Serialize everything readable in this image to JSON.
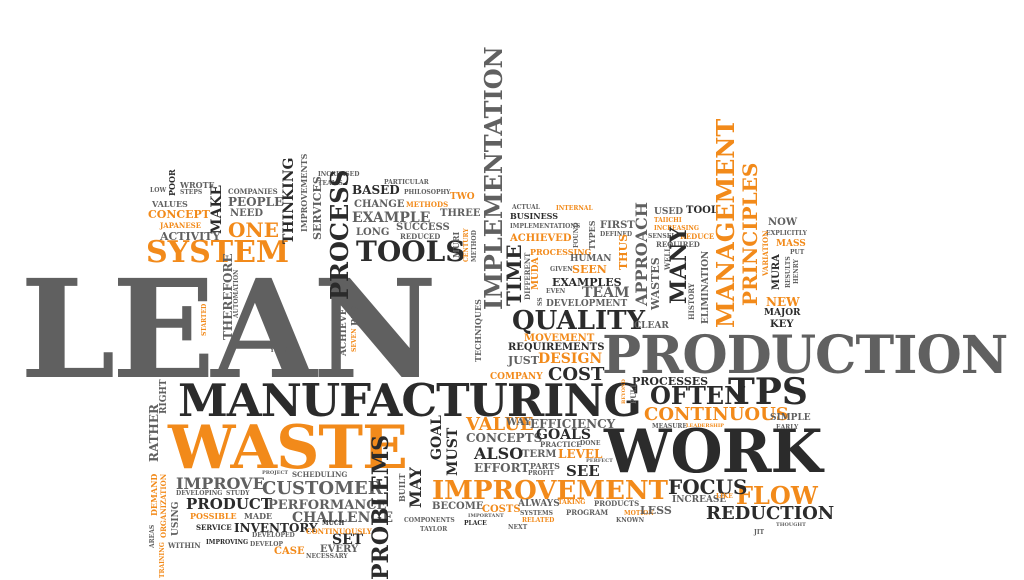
{
  "colors": {
    "dark": "#2b2b2b",
    "gray": "#606060",
    "light_gray": "#8a8a8a",
    "orange": "#f28a1a",
    "background": "#ffffff"
  },
  "words": {
    "lean": "LEAN",
    "production": "PRODUCTION",
    "manufacturing": "MANUFACTURING",
    "waste": "WASTE",
    "work": "WORK",
    "system": "SYSTEM",
    "process": "PROCESS",
    "tools": "TOOLS",
    "quality": "QUALITY",
    "implementation": "IMPLEMENTATION",
    "management": "MANAGEMENT",
    "principles": "PRINCIPLES",
    "improvement": "IMPROVEMENT",
    "tps": "TPS",
    "often": "OFTEN",
    "flow": "FLOW",
    "focus": "FOCUS",
    "reduction": "REDUCTION",
    "value": "VALUE",
    "continuous": "CONTINUOUS",
    "cost": "COST",
    "customer": "CUSTOMER",
    "challenge": "CHALLENGE",
    "performance": "PERFORMANCE",
    "product": "PRODUCT",
    "improve": "IMPROVE",
    "inventory": "INVENTORY",
    "set": "SET",
    "every": "EVERY",
    "case": "CASE",
    "problems": "PROBLEMS",
    "may": "MAY",
    "goal": "GOAL",
    "must": "MUST",
    "concepts": "CONCEPTS",
    "goals": "GOALS",
    "also": "ALSO",
    "effort": "EFFORT",
    "see": "SEE",
    "level": "LEVEL",
    "term": "TERM",
    "efficiency": "EFFICIENCY",
    "way": "WAY",
    "processes": "PROCESSES",
    "design": "DESIGN",
    "requirements": "REQUIREMENTS",
    "movement": "MOVEMENT",
    "just": "JUST",
    "company": "COMPANY",
    "one": "ONE",
    "concept": "CONCEPT",
    "activity": "ACTIVITY",
    "japanese": "JAPANESE",
    "values": "VALUES",
    "low": "LOW",
    "poor": "POOR",
    "wrote": "WROTE",
    "steps": "STEPS",
    "make": "MAKE",
    "people": "PEOPLE",
    "need": "NEED",
    "companies": "COMPANIES",
    "thinking": "THINKING",
    "improvements": "IMPROVEMENTS",
    "services": "SERVICES",
    "increased": "INCREASED",
    "teams": "TEAMS",
    "based": "BASED",
    "change": "CHANGE",
    "example": "EXAMPLE",
    "long": "LONG",
    "success": "SUCCESS",
    "reduced": "REDUCED",
    "three": "THREE",
    "two": "TWO",
    "methods": "METHODS",
    "philosophy": "PHILOSOPHY",
    "particular": "PARTICULAR",
    "muri": "MURI",
    "century": "CENTURY",
    "method": "METHOD",
    "time": "TIME",
    "business": "BUSINESS",
    "actual": "ACTUAL",
    "internal": "INTERNAL",
    "implementations": "IMPLEMENTATIONS",
    "achieved": "ACHIEVED",
    "processing": "PROCESSING",
    "muda": "MUDA",
    "different": "DIFFERENT",
    "given": "GIVEN",
    "seen": "SEEN",
    "human": "HUMAN",
    "examples": "EXAMPLES",
    "team": "TEAM",
    "development": "DEVELOPMENT",
    "types": "TYPES",
    "found": "FOUND",
    "first": "FIRST",
    "defined": "DEFINED",
    "approach": "APPROACH",
    "thus": "THUS",
    "wastes": "WASTES",
    "well": "WELL",
    "clear": "CLEAR",
    "used": "USED",
    "taiichi": "TAIICHI",
    "increasing": "INCREASING",
    "sensei": "SENSEI",
    "required": "REQUIRED",
    "reduce": "REDUCE",
    "tool": "TOOL",
    "many": "MANY",
    "history": "HISTORY",
    "elimination": "ELIMINATION",
    "now": "NOW",
    "explicitly": "EXPLICITLY",
    "mass": "MASS",
    "put": "PUT",
    "variation": "VARIATION",
    "mura": "MURA",
    "results": "RESULTS",
    "henry": "HENRY",
    "new": "NEW",
    "major": "MAJOR",
    "key": "KEY",
    "therefore": "THEREFORE",
    "automation": "AUTOMATION",
    "started": "STARTED",
    "years": "YEARS",
    "achieve": "ACHIEVE",
    "seven": "SEVEN",
    "best": "BEST",
    "techniques": "TECHNIQUES",
    "ss": "SS",
    "even": "EVEN",
    "rather": "RATHER",
    "right": "RIGHT",
    "demand": "DEMAND",
    "organization": "ORGANIZATION",
    "using": "USING",
    "areas": "AREAS",
    "training": "TRAINING",
    "within": "WITHIN",
    "developing": "DEVELOPING",
    "study": "STUDY",
    "possible": "POSSIBLE",
    "made": "MADE",
    "service": "SERVICE",
    "improving": "IMPROVING",
    "develop": "DEVELOP",
    "developed": "DEVELOPED",
    "project": "PROJECT",
    "scheduling": "SCHEDULING",
    "much": "MUCH",
    "continuously": "CONTINUOUSLY",
    "necessary": "NECESSARY",
    "built": "BUILT",
    "become": "BECOME",
    "components": "COMPONENTS",
    "taylor": "TAYLOR",
    "costs": "COSTS",
    "important": "IMPORTANT",
    "place": "PLACE",
    "always": "ALWAYS",
    "systems": "SYSTEMS",
    "related": "RELATED",
    "next": "NEXT",
    "parts": "PARTS",
    "profit": "PROFIT",
    "perfect": "PERFECT",
    "practice": "PRACTICE",
    "done": "DONE",
    "taking": "TAKING",
    "products": "PRODUCTS",
    "program": "PROGRAM",
    "motion": "MOTION",
    "known": "KNOWN",
    "less": "LESS",
    "increase": "INCREASE",
    "like": "LIKE",
    "beyond": "BEYOND",
    "pull": "PULL",
    "measure": "MEASURE",
    "leadership": "LEADERSHIP",
    "simple": "SIMPLE",
    "early": "EARLY",
    "jit": "JIT",
    "thought": "THOUGHT"
  }
}
